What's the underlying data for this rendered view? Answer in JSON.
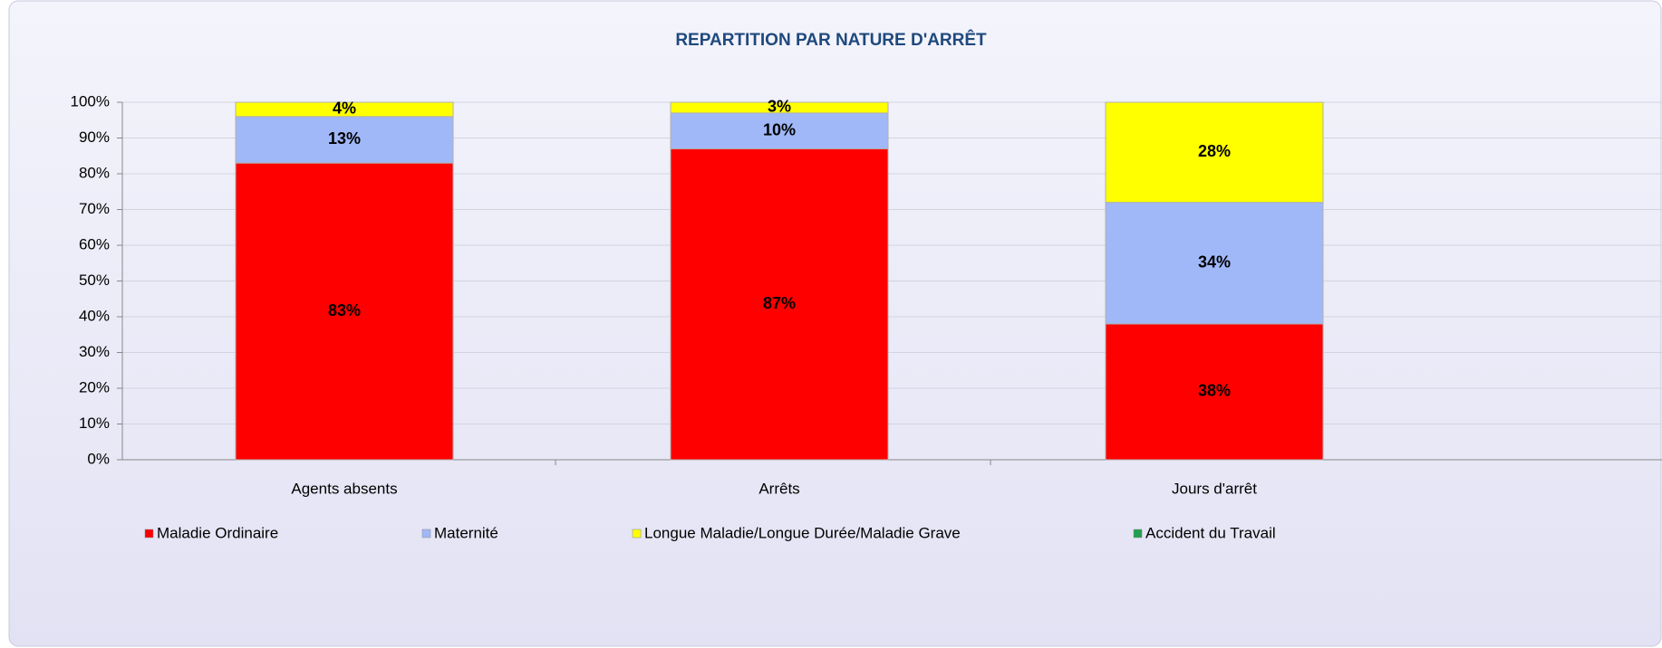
{
  "chart_data": {
    "type": "stacked_bar",
    "title": "REPARTITION PAR NATURE D'ARRÊT",
    "categories": [
      "Agents absents",
      "Arrêts",
      "Jours d'arrêt"
    ],
    "series": [
      {
        "name": "Maladie Ordinaire",
        "color": "#ff0000",
        "values": [
          83,
          87,
          38
        ],
        "value_labels": [
          "83%",
          "87%",
          "38%"
        ]
      },
      {
        "name": "Maternité",
        "color": "#a0b8f8",
        "values": [
          13,
          10,
          34
        ],
        "value_labels": [
          "13%",
          "10%",
          "34%"
        ]
      },
      {
        "name": "Longue Maladie/Longue Durée/Maladie Grave",
        "color": "#ffff00",
        "values": [
          4,
          3,
          28
        ],
        "value_labels": [
          "4%",
          "3%",
          "28%"
        ]
      },
      {
        "name": "Accident du Travail",
        "color": "#20a050",
        "values": [
          0,
          0,
          0
        ]
      }
    ],
    "ylim": [
      0,
      100
    ],
    "yticks": [
      {
        "value": 0,
        "label": "0%"
      },
      {
        "value": 10,
        "label": "10%"
      },
      {
        "value": 20,
        "label": "20%"
      },
      {
        "value": 30,
        "label": "30%"
      },
      {
        "value": 40,
        "label": "40%"
      },
      {
        "value": 50,
        "label": "50%"
      },
      {
        "value": 60,
        "label": "60%"
      },
      {
        "value": 70,
        "label": "70%"
      },
      {
        "value": 80,
        "label": "80%"
      },
      {
        "value": 90,
        "label": "90%"
      },
      {
        "value": 100,
        "label": "100%"
      }
    ],
    "grid": true,
    "legend": "bottom"
  }
}
